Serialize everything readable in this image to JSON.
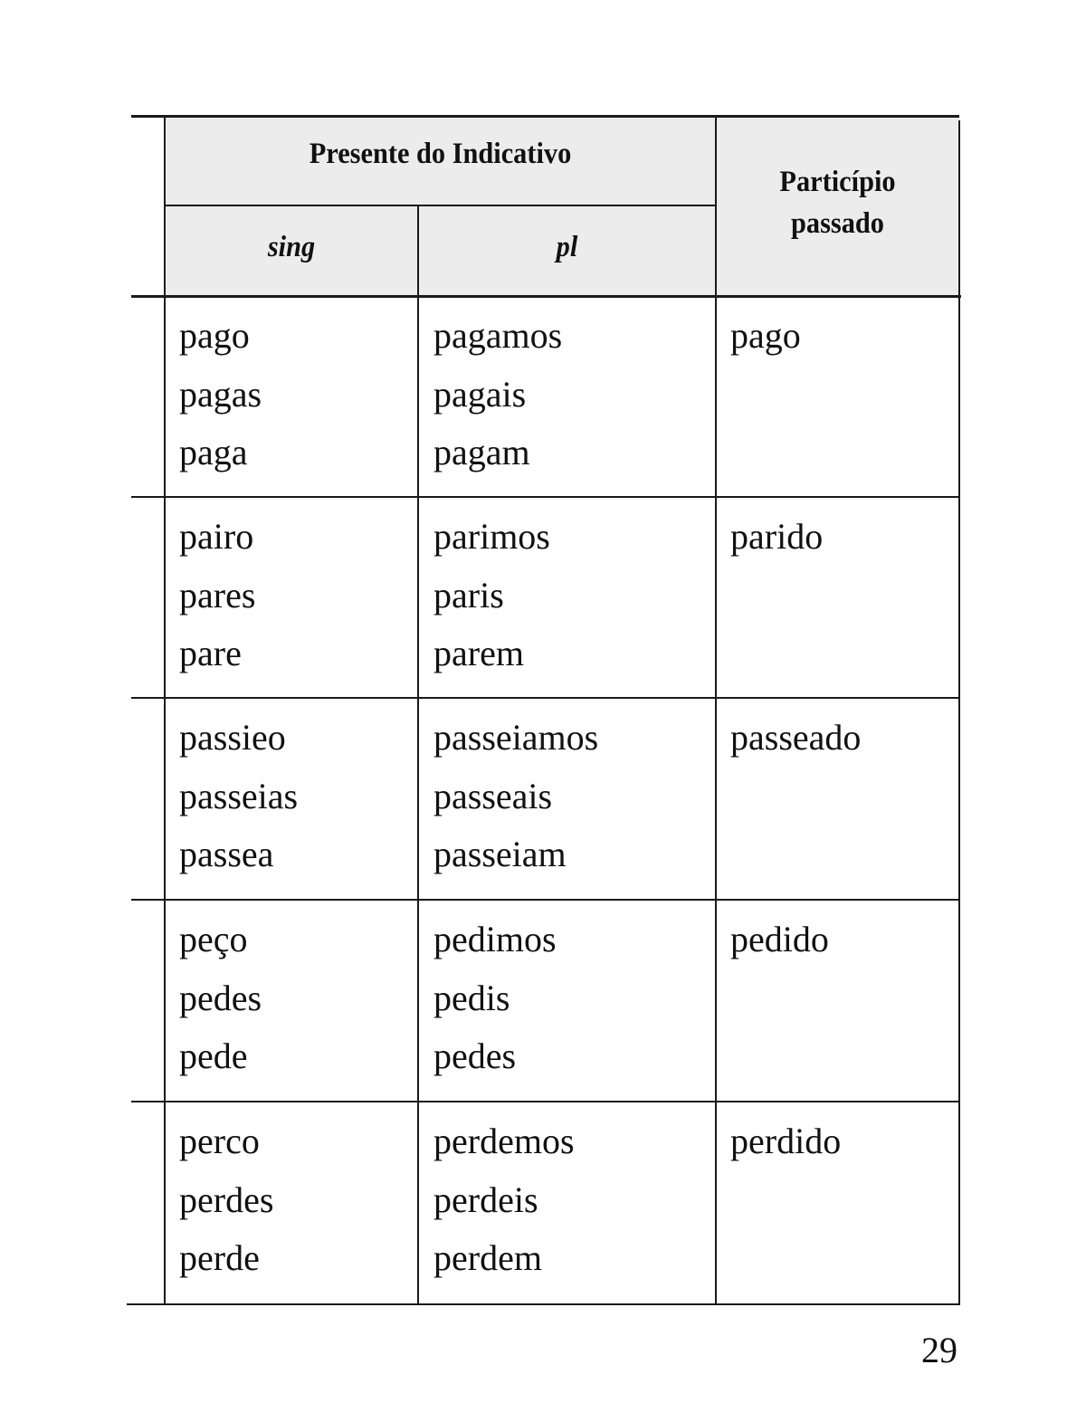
{
  "header": {
    "group": "Presente do Indicativo",
    "sing": "sing",
    "pl": "pl",
    "participle": [
      "Particípio",
      "passado"
    ]
  },
  "rows": [
    {
      "sing": [
        "pago",
        "pagas",
        "paga"
      ],
      "pl": [
        "pagamos",
        "pagais",
        "pagam"
      ],
      "participle": "pago"
    },
    {
      "sing": [
        "pairo",
        "pares",
        "pare"
      ],
      "pl": [
        "parimos",
        "paris",
        "parem"
      ],
      "participle": "parido"
    },
    {
      "sing": [
        "passieo",
        "passeias",
        "passea"
      ],
      "pl": [
        "passeiamos",
        "passeais",
        "passeiam"
      ],
      "participle": "passeado"
    },
    {
      "sing": [
        "peço",
        "pedes",
        "pede"
      ],
      "pl": [
        "pedimos",
        "pedis",
        "pedes"
      ],
      "participle": "pedido"
    },
    {
      "sing": [
        "perco",
        "perdes",
        "perde"
      ],
      "pl": [
        "perdemos",
        "perdeis",
        "perdem"
      ],
      "participle": "perdido"
    }
  ],
  "page_number": "29"
}
